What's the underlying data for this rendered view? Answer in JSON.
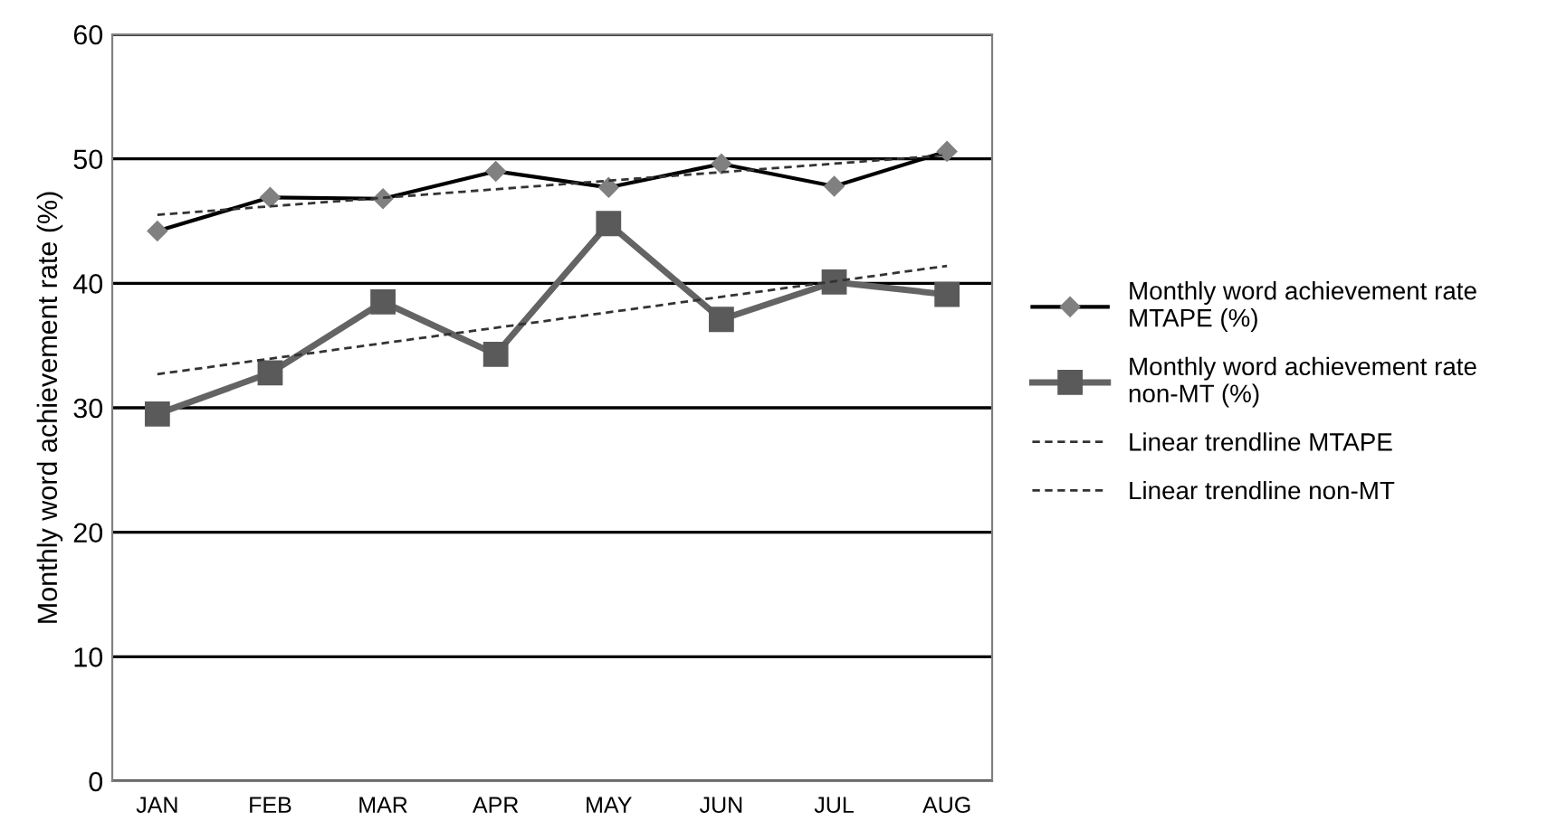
{
  "chart_data": {
    "type": "line",
    "ylabel": "Monthly word achievement rate (%)",
    "categories": [
      "JAN",
      "FEB",
      "MAR",
      "APR",
      "MAY",
      "JUN",
      "JUL",
      "AUG"
    ],
    "series": [
      {
        "name": "Monthly word achievement rate MTAPE (%)",
        "color": "#000000",
        "marker": "diamond",
        "line_style": "solid",
        "values": [
          44.2,
          46.9,
          46.8,
          49.0,
          47.7,
          49.6,
          47.8,
          50.6
        ]
      },
      {
        "name": "Monthly word achievement rate non-MT (%)",
        "color": "#646464",
        "marker": "square",
        "line_style": "solid",
        "values": [
          29.5,
          32.8,
          38.5,
          34.3,
          44.8,
          37.1,
          40.1,
          39.1
        ]
      },
      {
        "name": "Linear trendline MTAPE",
        "color": "#333333",
        "marker": "none",
        "line_style": "dashed",
        "x": [
          "JAN",
          "AUG"
        ],
        "values": [
          45.5,
          50.3
        ]
      },
      {
        "name": "Linear trendline non-MT",
        "color": "#333333",
        "marker": "none",
        "line_style": "dashed",
        "x": [
          "JAN",
          "AUG"
        ],
        "values": [
          32.7,
          41.4
        ]
      }
    ],
    "ylim": [
      0,
      60
    ],
    "yticks": [
      0,
      10,
      20,
      30,
      40,
      50,
      60
    ],
    "grid": "y",
    "legend": "right"
  }
}
